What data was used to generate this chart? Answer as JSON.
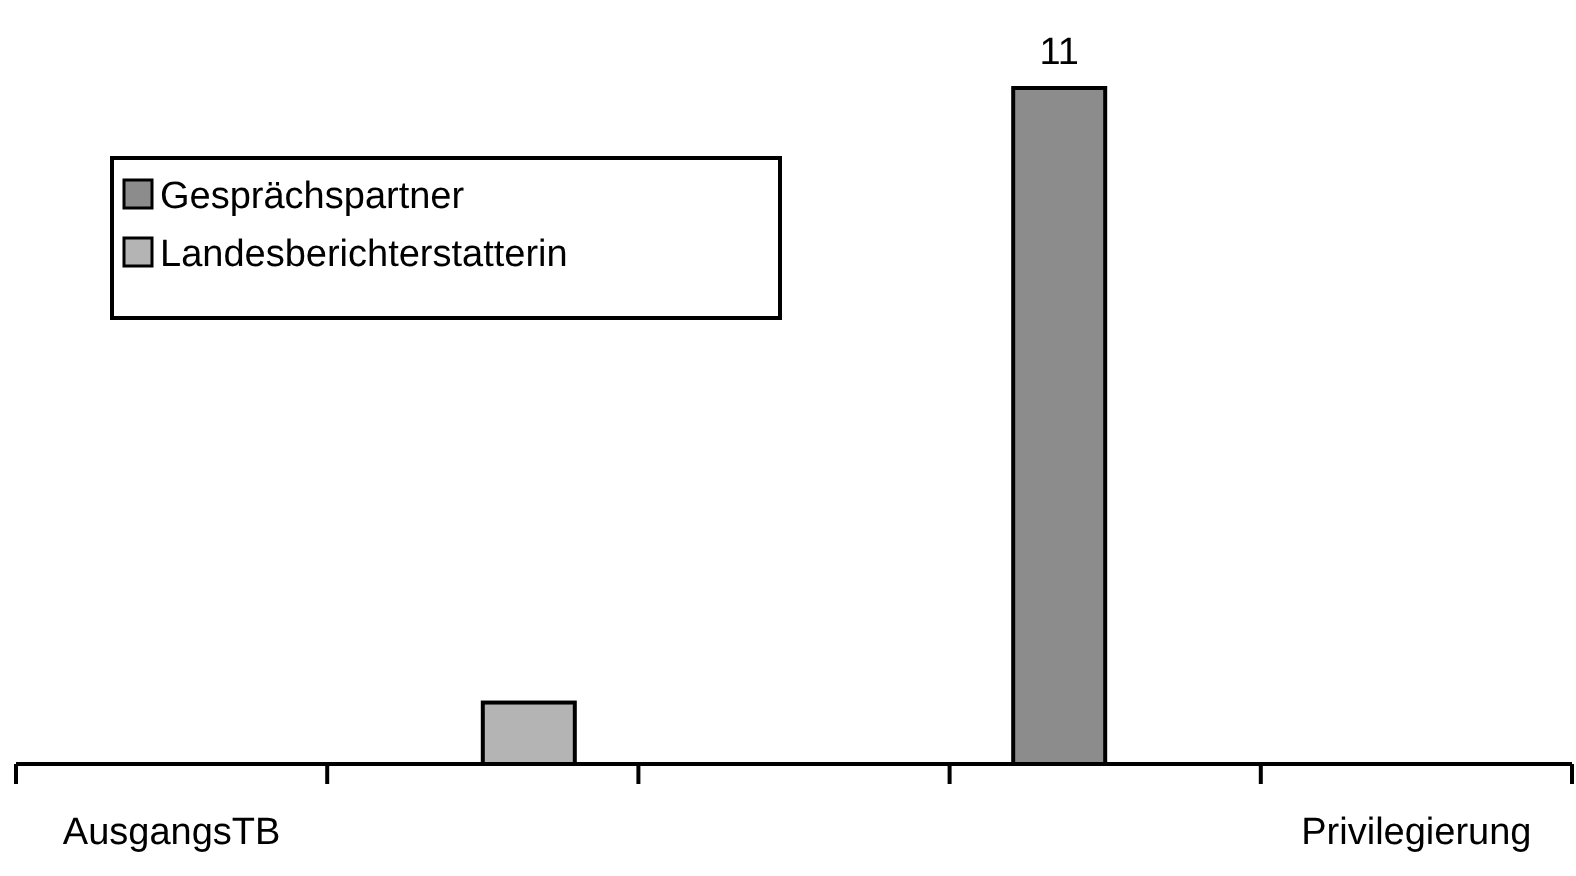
{
  "chart_data": {
    "type": "bar",
    "categories": [
      "AusgangsTB",
      null,
      null,
      null,
      "Privilegierung"
    ],
    "series": [
      {
        "name": "Gesprächspartner",
        "color": "#8c8c8c",
        "values": [
          null,
          null,
          null,
          11,
          null
        ],
        "value_labels": [
          null,
          null,
          null,
          "11",
          null
        ]
      },
      {
        "name": "Landesberichterstatterin",
        "color": "#b4b4b4",
        "values": [
          null,
          1,
          null,
          null,
          null
        ]
      }
    ],
    "relative": false,
    "legend": "top left"
  }
}
